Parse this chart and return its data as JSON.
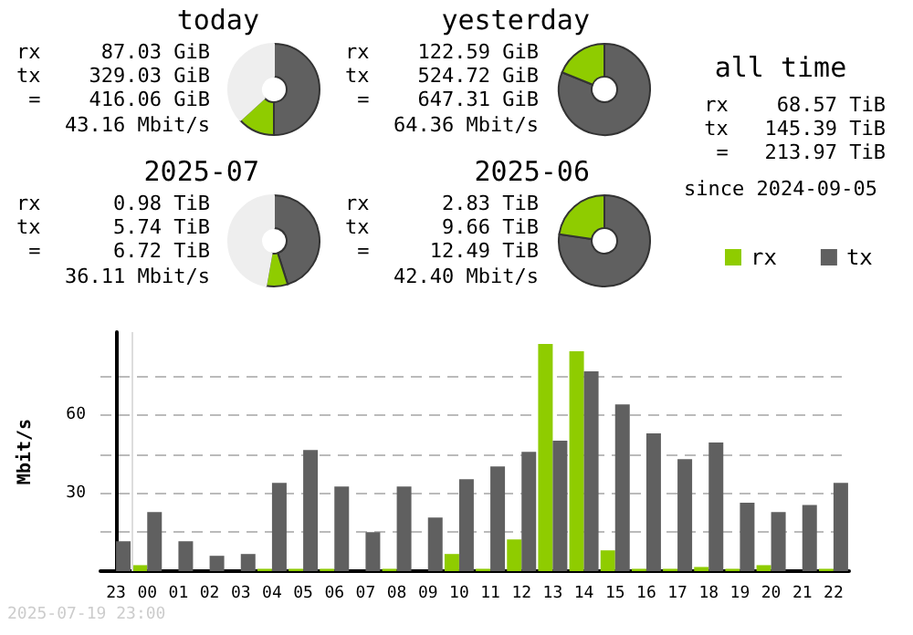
{
  "chart_data": [
    {
      "type": "donut",
      "title": "today",
      "categories": [
        null,
        null,
        null
      ],
      "values": [
        50.0,
        13.2,
        36.8
      ],
      "colors": [
        "#606060",
        "#8fcc00",
        "#eeeeee"
      ],
      "annotations": [
        "rx     87.03 GiB",
        "tx    329.03 GiB",
        " =    416.06 GiB",
        "43.16 Mbit/s"
      ]
    },
    {
      "type": "donut",
      "title": "yesterday",
      "categories": [
        null,
        null
      ],
      "values": [
        81.1,
        18.9
      ],
      "colors": [
        "#606060",
        "#8fcc00"
      ],
      "annotations": [
        "rx    122.59 GiB",
        "tx    524.72 GiB",
        " =    647.31 GiB",
        "64.36 Mbit/s"
      ]
    },
    {
      "type": "donut",
      "title": "2025-07",
      "categories": [
        null,
        null,
        null
      ],
      "values": [
        45.1,
        7.7,
        47.2
      ],
      "colors": [
        "#606060",
        "#8fcc00",
        "#eeeeee"
      ],
      "annotations": [
        "rx      0.98 TiB",
        "tx      5.74 TiB",
        " =      6.72 TiB",
        "36.11 Mbit/s"
      ]
    },
    {
      "type": "donut",
      "title": "2025-06",
      "categories": [
        null,
        null
      ],
      "values": [
        77.3,
        22.7
      ],
      "colors": [
        "#606060",
        "#8fcc00"
      ],
      "annotations": [
        "rx      2.83 TiB",
        "tx      9.66 TiB",
        " =     12.49 TiB",
        "42.40 Mbit/s"
      ]
    },
    {
      "type": "other",
      "title": "all time",
      "annotations": [
        "rx    68.57 TiB",
        "tx   145.39 TiB",
        " =   213.97 TiB",
        "since 2024-09-05"
      ]
    },
    {
      "type": "bar",
      "ylabel": "Mbit/s",
      "categories": [
        "23",
        "00",
        "01",
        "02",
        "03",
        "04",
        "05",
        "06",
        "07",
        "08",
        "09",
        "10",
        "11",
        "12",
        "13",
        "14",
        "15",
        "16",
        "17",
        "18",
        "19",
        "20",
        "21",
        "22"
      ],
      "series": [
        {
          "name": "rx",
          "color": "#8fcc00",
          "values": [
            0,
            2.3,
            0,
            0,
            0,
            0.9,
            0.9,
            0.9,
            0,
            0.9,
            0,
            6.6,
            0.9,
            12.2,
            87.4,
            84.6,
            8.0,
            0.9,
            0.9,
            1.6,
            0.9,
            2.3,
            0,
            0.9
          ]
        },
        {
          "name": "tx",
          "color": "#606060",
          "values": [
            11.5,
            22.7,
            11.5,
            5.9,
            6.6,
            34.0,
            46.6,
            32.6,
            15.0,
            32.6,
            20.6,
            35.4,
            40.3,
            45.9,
            50.2,
            76.9,
            64.2,
            53.0,
            43.1,
            49.5,
            26.3,
            22.7,
            25.5,
            34.0
          ]
        }
      ],
      "ylim": [
        0,
        92
      ],
      "yticks": [
        {
          "value": 15,
          "label": null
        },
        30,
        {
          "value": 45,
          "label": null
        },
        60,
        {
          "value": 75,
          "label": null
        }
      ],
      "grid": "y",
      "legend": "top right",
      "ref_lines": [
        {
          "axis": "x",
          "value": "00",
          "color": "#dddddd"
        }
      ],
      "annotations": [
        "2025-07-19 23:00"
      ]
    }
  ]
}
